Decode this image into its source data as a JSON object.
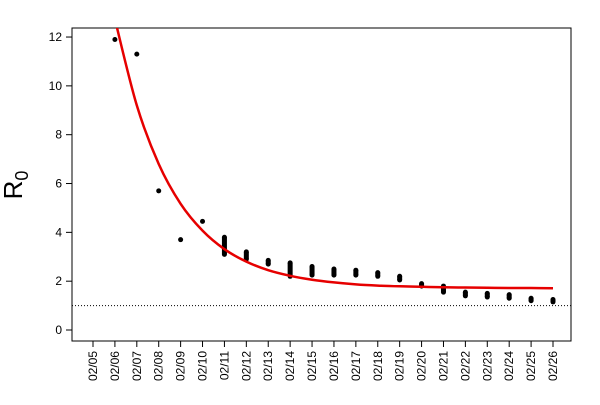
{
  "chart_data": {
    "type": "scatter",
    "ylabel": "R",
    "ylabel_subscript": "0",
    "categories": [
      "02/05",
      "02/06",
      "02/07",
      "02/08",
      "02/09",
      "02/10",
      "02/11",
      "02/12",
      "02/13",
      "02/14",
      "02/15",
      "02/16",
      "02/17",
      "02/18",
      "02/19",
      "02/20",
      "02/21",
      "02/22",
      "02/23",
      "02/24",
      "02/25",
      "02/26"
    ],
    "series": [
      {
        "color": "#000000",
        "values": [
          null,
          11.9,
          11.3,
          5.7,
          3.7,
          4.45,
          3.8,
          3.2,
          2.85,
          2.75,
          2.6,
          2.5,
          2.45,
          2.35,
          2.2,
          1.9,
          1.8,
          1.55,
          1.5,
          1.45,
          1.3,
          1.25
        ]
      },
      {
        "color": "#000000",
        "values": [
          null,
          null,
          null,
          null,
          null,
          null,
          3.1,
          2.9,
          2.7,
          2.2,
          2.25,
          2.25,
          2.25,
          2.2,
          2.05,
          1.8,
          1.55,
          1.4,
          1.35,
          1.3,
          1.2,
          1.15
        ]
      }
    ],
    "fit": {
      "color": "#e60000",
      "values": [
        null,
        12.73,
        9.2,
        6.8,
        5.17,
        4.07,
        3.31,
        2.8,
        2.45,
        2.22,
        2.06,
        1.95,
        1.87,
        1.82,
        1.79,
        1.77,
        1.75,
        1.74,
        1.73,
        1.72,
        1.72,
        1.71
      ]
    },
    "hline": 1,
    "ylim": [
      -0.45,
      12.37
    ],
    "yticks": [
      0,
      2,
      4,
      6,
      8,
      10,
      12
    ]
  }
}
